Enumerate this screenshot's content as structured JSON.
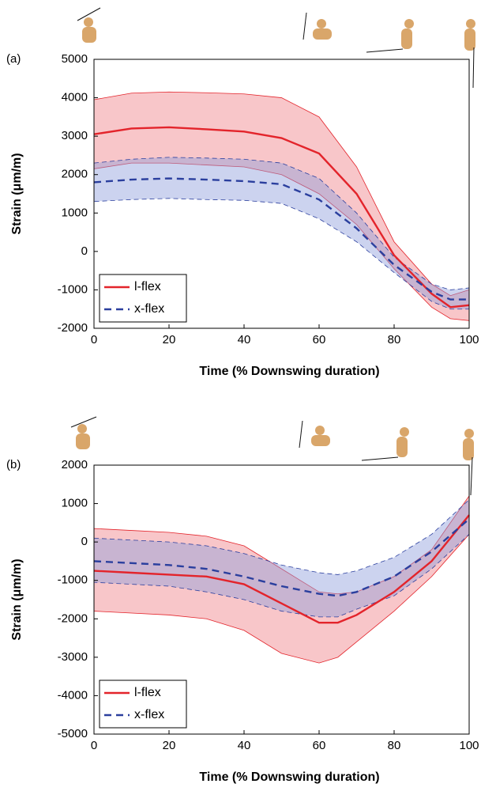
{
  "chart_data": [
    {
      "type": "line",
      "panel_label": "(a)",
      "xlabel": "Time (% Downswing duration)",
      "ylabel": "Strain (μm/m)",
      "x": [
        0,
        10,
        20,
        30,
        40,
        50,
        60,
        70,
        80,
        90,
        95,
        100
      ],
      "xlim": [
        0,
        100
      ],
      "xticks": [
        0,
        20,
        40,
        60,
        80,
        100
      ],
      "ylim": [
        -2000,
        5000
      ],
      "yticks": [
        -2000,
        -1000,
        0,
        1000,
        2000,
        3000,
        4000,
        5000
      ],
      "legend": "lower left",
      "series": [
        {
          "name": "l-flex",
          "color": "#e3242b",
          "band_color": "#f08088",
          "dashed": false,
          "values": [
            3050,
            3200,
            3230,
            3180,
            3120,
            2950,
            2550,
            1500,
            -100,
            -1100,
            -1450,
            -1400
          ],
          "upper": [
            3950,
            4120,
            4150,
            4130,
            4100,
            4000,
            3500,
            2200,
            250,
            -850,
            -1150,
            -1000
          ],
          "lower": [
            2150,
            2300,
            2300,
            2250,
            2200,
            2000,
            1500,
            700,
            -450,
            -1450,
            -1750,
            -1800
          ]
        },
        {
          "name": "x-flex",
          "color": "#2b3f9e",
          "band_color": "#8f9ddc",
          "dashed": true,
          "values": [
            1800,
            1870,
            1900,
            1870,
            1830,
            1750,
            1350,
            600,
            -350,
            -1050,
            -1250,
            -1250
          ],
          "upper": [
            2300,
            2400,
            2450,
            2430,
            2400,
            2300,
            1900,
            1000,
            -150,
            -850,
            -1000,
            -950
          ],
          "lower": [
            1300,
            1350,
            1380,
            1350,
            1330,
            1250,
            850,
            250,
            -550,
            -1300,
            -1500,
            -1500
          ]
        }
      ]
    },
    {
      "type": "line",
      "panel_label": "(b)",
      "xlabel": "Time (% Downswing duration)",
      "ylabel": "Strain (μm/m)",
      "x": [
        0,
        10,
        20,
        30,
        40,
        50,
        60,
        65,
        70,
        80,
        90,
        100
      ],
      "xlim": [
        0,
        100
      ],
      "xticks": [
        0,
        20,
        40,
        60,
        80,
        100
      ],
      "ylim": [
        -5000,
        2000
      ],
      "yticks": [
        -5000,
        -4000,
        -3000,
        -2000,
        -1000,
        0,
        1000,
        2000
      ],
      "legend": "lower left",
      "series": [
        {
          "name": "l-flex",
          "color": "#e3242b",
          "band_color": "#f08088",
          "dashed": false,
          "values": [
            -750,
            -800,
            -850,
            -900,
            -1100,
            -1600,
            -2100,
            -2100,
            -1900,
            -1300,
            -500,
            700
          ],
          "upper": [
            350,
            300,
            250,
            150,
            -100,
            -700,
            -1300,
            -1350,
            -1300,
            -900,
            -200,
            1200
          ],
          "lower": [
            -1800,
            -1850,
            -1900,
            -2000,
            -2300,
            -2900,
            -3150,
            -3000,
            -2600,
            -1800,
            -900,
            200
          ]
        },
        {
          "name": "x-flex",
          "color": "#2b3f9e",
          "band_color": "#8f9ddc",
          "dashed": true,
          "values": [
            -500,
            -550,
            -600,
            -700,
            -900,
            -1150,
            -1350,
            -1400,
            -1300,
            -900,
            -250,
            600
          ],
          "upper": [
            100,
            50,
            0,
            -100,
            -300,
            -600,
            -800,
            -850,
            -750,
            -400,
            200,
            1100
          ],
          "lower": [
            -1050,
            -1100,
            -1150,
            -1300,
            -1500,
            -1800,
            -1950,
            -1950,
            -1750,
            -1400,
            -700,
            200
          ]
        }
      ]
    }
  ]
}
